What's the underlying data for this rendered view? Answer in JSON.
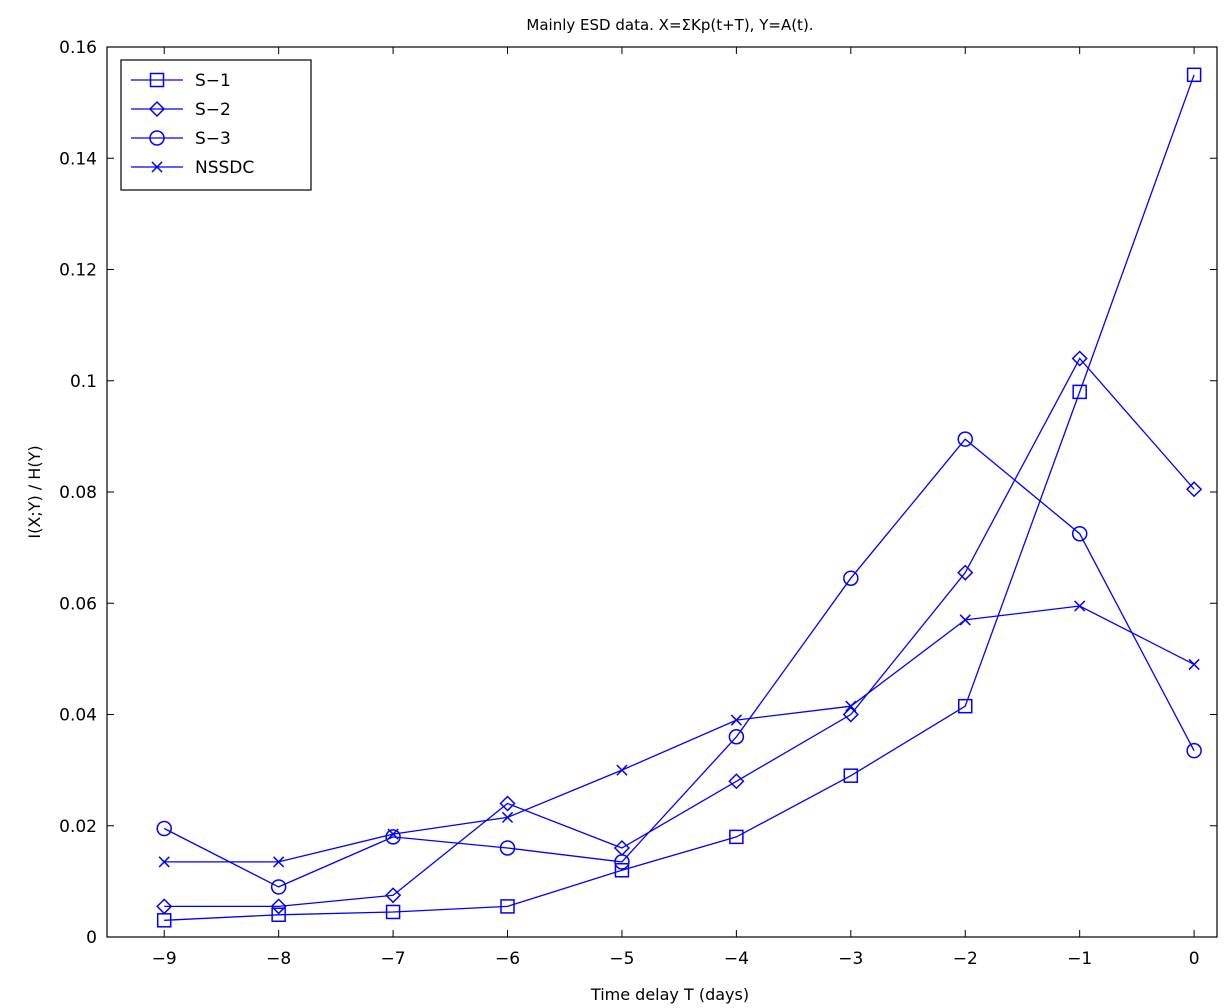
{
  "chart_data": {
    "type": "line",
    "title": "Mainly ESD data. X=ΣKp(t+T), Y=A(t).",
    "xlabel": "Time delay T (days)",
    "ylabel": "I(X;Y) / H(Y)",
    "xlim": [
      -9.5,
      0.2
    ],
    "ylim": [
      0,
      0.16
    ],
    "xticks": [
      -9,
      -8,
      -7,
      -6,
      -5,
      -4,
      -3,
      -2,
      -1,
      0
    ],
    "xtick_labels": [
      "−9",
      "−8",
      "−7",
      "−6",
      "−5",
      "−4",
      "−3",
      "−2",
      "−1",
      "0"
    ],
    "yticks": [
      0,
      0.02,
      0.04,
      0.06,
      0.08,
      0.1,
      0.12,
      0.14,
      0.16
    ],
    "ytick_labels": [
      "0",
      "0.02",
      "0.04",
      "0.06",
      "0.08",
      "0.1",
      "0.12",
      "0.14",
      "0.16"
    ],
    "grid": false,
    "legend_position": "top-left",
    "line_color": "#0000ff",
    "x": [
      -9,
      -8,
      -7,
      -6,
      -5,
      -4,
      -3,
      -2,
      -1,
      0
    ],
    "series": [
      {
        "name": "S−1",
        "marker": "square",
        "values": [
          0.003,
          0.004,
          0.0045,
          0.0055,
          0.012,
          0.018,
          0.029,
          0.0415,
          0.098,
          0.155
        ]
      },
      {
        "name": "S−2",
        "marker": "diamond",
        "values": [
          0.0055,
          0.0055,
          0.0075,
          0.024,
          0.016,
          0.028,
          0.04,
          0.0655,
          0.104,
          0.0805
        ]
      },
      {
        "name": "S−3",
        "marker": "circle",
        "values": [
          0.0195,
          0.009,
          0.018,
          0.016,
          0.0135,
          0.036,
          0.0645,
          0.0895,
          0.0725,
          0.0335
        ]
      },
      {
        "name": "NSSDC",
        "marker": "x",
        "values": [
          0.0135,
          0.0135,
          0.0185,
          0.0215,
          0.03,
          0.039,
          0.0415,
          0.057,
          0.0595,
          0.049
        ]
      }
    ]
  }
}
